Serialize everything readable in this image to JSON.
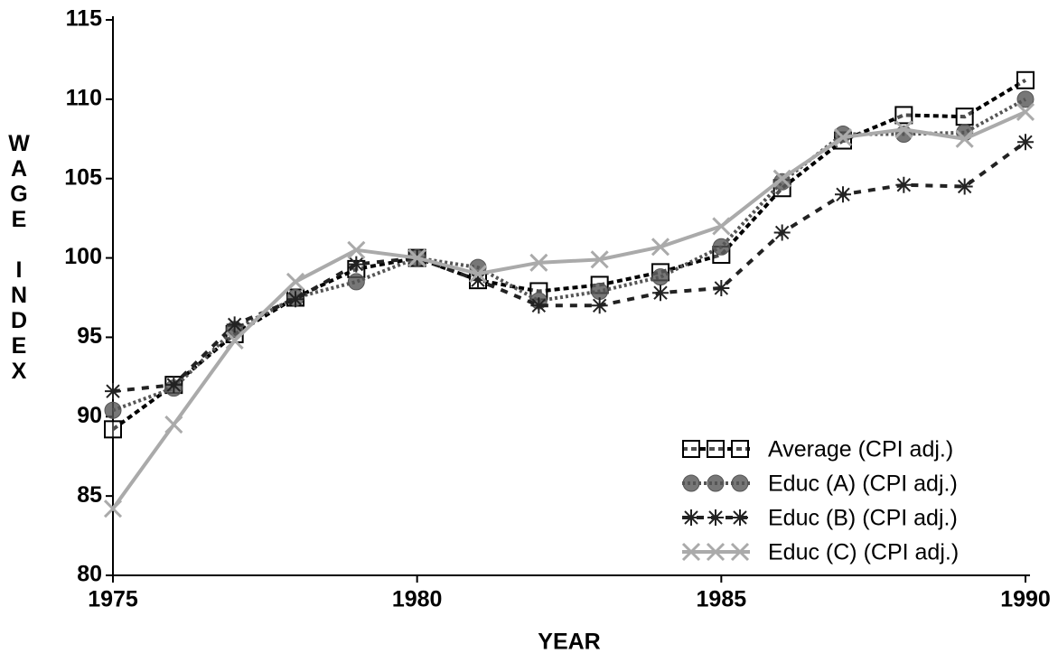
{
  "chart_data": {
    "type": "line",
    "x_label": "YEAR",
    "y_label": "WAGE INDEX",
    "x": [
      1975,
      1976,
      1977,
      1978,
      1979,
      1980,
      1981,
      1982,
      1983,
      1984,
      1985,
      1986,
      1987,
      1988,
      1989,
      1990
    ],
    "series": [
      {
        "name": "Average (CPI adj.)",
        "color": "#000000",
        "marker": "square",
        "dash": "6 4",
        "values": [
          89.2,
          92,
          95.2,
          97.5,
          99.3,
          100,
          98.6,
          97.9,
          98.3,
          99.1,
          100.2,
          104.4,
          107.4,
          109,
          108.9,
          111.2
        ]
      },
      {
        "name": "Educ (A) (CPI adj.)",
        "color": "#555555",
        "marker": "circle",
        "dash": "3 3",
        "values": [
          90.4,
          91.8,
          95.5,
          97.5,
          98.5,
          100,
          99.4,
          97.3,
          97.9,
          98.8,
          100.7,
          104.8,
          107.8,
          107.8,
          107.9,
          110
        ]
      },
      {
        "name": "Educ (B) (CPI adj.)",
        "color": "#222222",
        "marker": "star",
        "dash": "8 8",
        "values": [
          91.6,
          92,
          95.8,
          97.4,
          99.6,
          100,
          98.6,
          97,
          97,
          97.8,
          98.1,
          101.6,
          104,
          104.6,
          104.5,
          107.3
        ]
      },
      {
        "name": "Educ (C) (CPI adj.)",
        "color": "#aaaaaa",
        "marker": "x",
        "dash": "",
        "values": [
          84.2,
          89.5,
          94.8,
          98.5,
          100.5,
          100,
          99,
          99.7,
          99.9,
          100.7,
          102,
          105,
          107.6,
          108.1,
          107.5,
          109.2
        ]
      }
    ],
    "xlim": [
      1975,
      1990
    ],
    "xticks": [
      1975,
      1980,
      1985,
      1990
    ],
    "ylim": [
      80,
      115
    ],
    "yticks": [
      80,
      85,
      90,
      95,
      100,
      105,
      110,
      115
    ],
    "legend": "lower right",
    "grid": false
  }
}
